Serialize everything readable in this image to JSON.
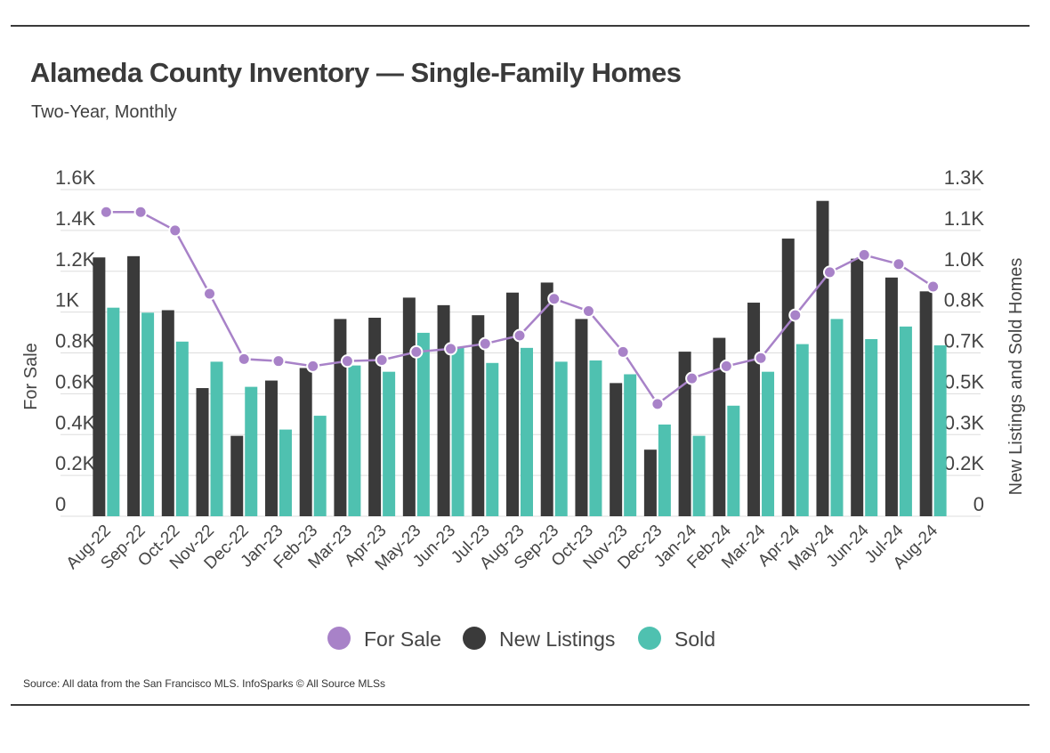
{
  "header": {
    "title": "Alameda County Inventory — Single-Family Homes",
    "subtitle": "Two-Year, Monthly"
  },
  "footer": {
    "source": "Source:  All data from the San Francisco MLS. InfoSparks © All Source MLSs"
  },
  "colors": {
    "for_sale": "#a882c8",
    "new_listings": "#3a3a3a",
    "sold": "#4fc1b0",
    "grid": "#dddddd",
    "rule": "#3a3a3a"
  },
  "chart_data": {
    "type": "bar",
    "categories": [
      "Aug-22",
      "Sep-22",
      "Oct-22",
      "Nov-22",
      "Dec-22",
      "Jan-23",
      "Feb-23",
      "Mar-23",
      "Apr-23",
      "May-23",
      "Jun-23",
      "Jul-23",
      "Aug-23",
      "Sep-23",
      "Oct-23",
      "Nov-23",
      "Dec-23",
      "Jan-24",
      "Feb-24",
      "Mar-24",
      "Apr-24",
      "May-24",
      "Jun-24",
      "Jul-24",
      "Aug-24"
    ],
    "left_axis": {
      "label": "For Sale",
      "ylim": [
        0,
        1600
      ],
      "ticks": [
        0,
        200,
        400,
        600,
        800,
        1000,
        1200,
        1400,
        1600
      ],
      "tick_labels": [
        "0",
        "0.2K",
        "0.4K",
        "0.6K",
        "0.8K",
        "1K",
        "1.2K",
        "1.4K",
        "1.6K"
      ]
    },
    "right_axis": {
      "label": "New Listings and Sold Homes",
      "ylim": [
        0,
        1300
      ],
      "ticks": [
        0,
        162.5,
        325,
        487.5,
        650,
        812.5,
        975,
        1137.5,
        1300
      ],
      "tick_labels": [
        "0",
        "0.2K",
        "0.3K",
        "0.5K",
        "0.7K",
        "0.8K",
        "1.0K",
        "1.1K",
        "1.3K"
      ]
    },
    "series": [
      {
        "name": "For Sale",
        "kind": "line",
        "axis": "left",
        "values": [
          1490,
          1490,
          1400,
          1090,
          770,
          760,
          735,
          760,
          765,
          805,
          820,
          845,
          885,
          1065,
          1005,
          805,
          550,
          675,
          735,
          775,
          985,
          1195,
          1280,
          1235,
          1125
        ]
      },
      {
        "name": "New Listings",
        "kind": "bar",
        "axis": "right",
        "values": [
          1030,
          1035,
          820,
          510,
          320,
          540,
          590,
          785,
          790,
          870,
          840,
          800,
          890,
          930,
          785,
          530,
          265,
          655,
          710,
          850,
          1105,
          1255,
          1025,
          950,
          895
        ]
      },
      {
        "name": "Sold",
        "kind": "bar",
        "axis": "right",
        "values": [
          830,
          810,
          695,
          615,
          515,
          345,
          400,
          600,
          575,
          730,
          670,
          610,
          670,
          615,
          620,
          565,
          365,
          320,
          440,
          575,
          685,
          785,
          705,
          755,
          680
        ]
      }
    ],
    "legend": {
      "placement": "bottom-center",
      "items": [
        "For Sale",
        "New Listings",
        "Sold"
      ]
    },
    "grid": true
  }
}
